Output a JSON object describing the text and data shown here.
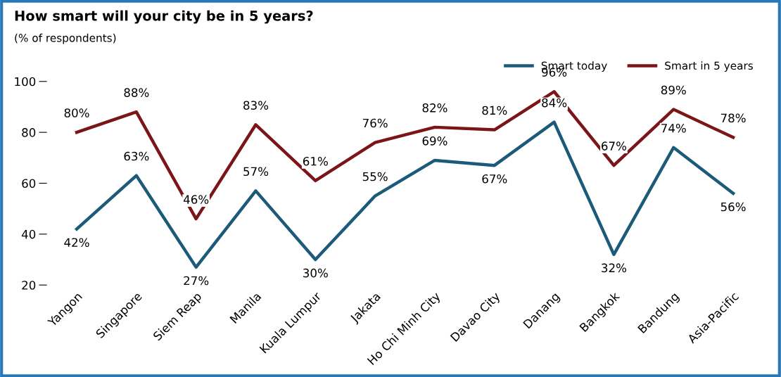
{
  "chart_data": {
    "type": "line",
    "title": "How smart will your city be in 5 years?",
    "subtitle": "(% of respondents)",
    "categories": [
      "Yangon",
      "Singapore",
      "Siem Reap",
      "Manila",
      "Kuala Lumpur",
      "Jakata",
      "Ho Chi Minh City",
      "Davao City",
      "Danang",
      "Bangkok",
      "Bandung",
      "Asia-Pacific"
    ],
    "series": [
      {
        "name": "Smart today",
        "color": "#1b5a78",
        "values": [
          42,
          63,
          27,
          57,
          30,
          55,
          69,
          67,
          84,
          32,
          74,
          56
        ],
        "value_labels": [
          "42%",
          "63%",
          "27%",
          "57%",
          "30%",
          "55%",
          "69%",
          "67%",
          "84%",
          "32%",
          "74%",
          "56%"
        ]
      },
      {
        "name": "Smart in 5 years",
        "color": "#7b1518",
        "values": [
          80,
          88,
          46,
          83,
          61,
          76,
          82,
          81,
          96,
          67,
          89,
          78
        ],
        "value_labels": [
          "80%",
          "88%",
          "46%",
          "83%",
          "61%",
          "76%",
          "82%",
          "81%",
          "96%",
          "67%",
          "89%",
          "78%"
        ]
      }
    ],
    "ylim": [
      20,
      100
    ],
    "yticks": [
      20,
      40,
      60,
      80,
      100
    ],
    "grid": false,
    "legend": "top right",
    "marker": "none",
    "line_style": "solid"
  }
}
